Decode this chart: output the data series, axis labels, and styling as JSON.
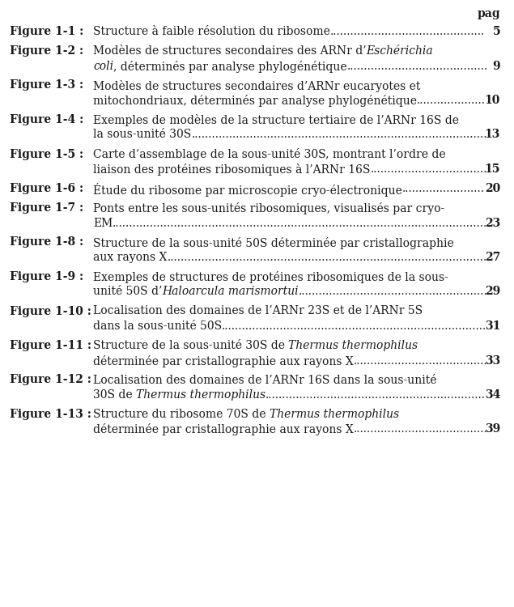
{
  "background_color": "#ffffff",
  "text_color": "#1a1a1a",
  "figsize": [
    6.35,
    7.5
  ],
  "dpi": 100,
  "header": "pag",
  "entries": [
    {
      "label": "Figure 1-1 :",
      "lines": [
        {
          "segments": [
            [
              "Structure à faible résolution du ribosome",
              false
            ]
          ],
          "dots": true,
          "page": null
        }
      ],
      "page": "5"
    },
    {
      "label": "Figure 1-2 :",
      "lines": [
        {
          "segments": [
            [
              "Modèles de structures secondaires des ARNr d’",
              false
            ],
            [
              "Eschérichia",
              true
            ]
          ],
          "dots": false,
          "page": null
        },
        {
          "segments": [
            [
              "coli",
              true
            ],
            [
              ", déterminés par analyse phylogénétique",
              false
            ]
          ],
          "dots": true,
          "page": null
        }
      ],
      "page": "9"
    },
    {
      "label": "Figure 1-3 :",
      "lines": [
        {
          "segments": [
            [
              "Modèles de structures secondaires d’ARNr eucaryotes et",
              false
            ]
          ],
          "dots": false,
          "page": null
        },
        {
          "segments": [
            [
              "mitochondriaux, déterminés par analyse phylogénétique",
              false
            ]
          ],
          "dots": true,
          "page": null
        }
      ],
      "page": "10"
    },
    {
      "label": "Figure 1-4 :",
      "lines": [
        {
          "segments": [
            [
              "Exemples de modèles de la structure tertiaire de l’ARNr 16S de",
              false
            ]
          ],
          "dots": false,
          "page": null
        },
        {
          "segments": [
            [
              "la sous-unité 30S",
              false
            ]
          ],
          "dots": true,
          "page": null
        }
      ],
      "page": "13"
    },
    {
      "label": "Figure 1-5 :",
      "lines": [
        {
          "segments": [
            [
              "Carte d’assemblage de la sous-unité 30S, montrant l’ordre de",
              false
            ]
          ],
          "dots": false,
          "page": null
        },
        {
          "segments": [
            [
              "liaison des protéines ribosomiques à l’ARNr 16S",
              false
            ]
          ],
          "dots": true,
          "page": null
        }
      ],
      "page": "15"
    },
    {
      "label": "Figure 1-6 :",
      "lines": [
        {
          "segments": [
            [
              "Étude du ribosome par microscopie cryo-électronique",
              false
            ]
          ],
          "dots": true,
          "page": null
        }
      ],
      "page": "20"
    },
    {
      "label": "Figure 1-7 :",
      "lines": [
        {
          "segments": [
            [
              "Ponts entre les sous-unités ribosomiques, visualisés par cryo-",
              false
            ]
          ],
          "dots": false,
          "page": null
        },
        {
          "segments": [
            [
              "EM",
              false
            ]
          ],
          "dots": true,
          "page": null
        }
      ],
      "page": "23"
    },
    {
      "label": "Figure 1-8 :",
      "lines": [
        {
          "segments": [
            [
              "Structure de la sous-unité 50S déterminée par cristallographie",
              false
            ]
          ],
          "dots": false,
          "page": null
        },
        {
          "segments": [
            [
              "aux rayons X",
              false
            ]
          ],
          "dots": true,
          "page": null
        }
      ],
      "page": "27"
    },
    {
      "label": "Figure 1-9 :",
      "lines": [
        {
          "segments": [
            [
              "Exemples de structures de protéines ribosomiques de la sous-",
              false
            ]
          ],
          "dots": false,
          "page": null
        },
        {
          "segments": [
            [
              "unité 50S d’",
              false
            ],
            [
              "Haloarcula marismortui",
              true
            ]
          ],
          "dots": true,
          "page": null
        }
      ],
      "page": "29"
    },
    {
      "label": "Figure 1-10 :",
      "lines": [
        {
          "segments": [
            [
              "Localisation des domaines de l’ARNr 23S et de l’ARNr 5S",
              false
            ]
          ],
          "dots": false,
          "page": null
        },
        {
          "segments": [
            [
              "dans la sous-unité 50S",
              false
            ]
          ],
          "dots": true,
          "page": null
        }
      ],
      "page": "31"
    },
    {
      "label": "Figure 1-11 :",
      "lines": [
        {
          "segments": [
            [
              "Structure de la sous-unité 30S de ",
              false
            ],
            [
              "Thermus thermophilus",
              true
            ]
          ],
          "dots": false,
          "page": null
        },
        {
          "segments": [
            [
              "déterminée par cristallographie aux rayons X",
              false
            ]
          ],
          "dots": true,
          "page": null
        }
      ],
      "page": "33"
    },
    {
      "label": "Figure 1-12 :",
      "lines": [
        {
          "segments": [
            [
              "Localisation des domaines de l’ARNr 16S dans la sous-unité",
              false
            ]
          ],
          "dots": false,
          "page": null
        },
        {
          "segments": [
            [
              "30S de ",
              false
            ],
            [
              "Thermus thermophilus",
              true
            ]
          ],
          "dots": true,
          "page": null
        }
      ],
      "page": "34"
    },
    {
      "label": "Figure 1-13 :",
      "lines": [
        {
          "segments": [
            [
              "Structure du ribosome 70S de ",
              false
            ],
            [
              "Thermus thermophilus",
              true
            ]
          ],
          "dots": false,
          "page": null
        },
        {
          "segments": [
            [
              "déterminée par cristallographie aux rayons X",
              false
            ]
          ],
          "dots": true,
          "page": null
        }
      ],
      "page": "39"
    }
  ]
}
